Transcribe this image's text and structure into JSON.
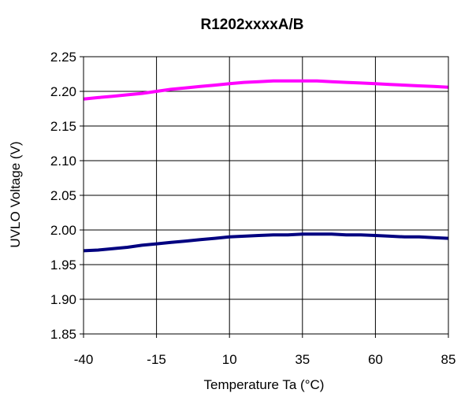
{
  "chart_data": {
    "type": "line",
    "title": "R1202xxxxA/B",
    "xlabel": "Temperature Ta (°C)",
    "ylabel": "UVLO Voltage (V)",
    "xlim": [
      -40,
      85
    ],
    "ylim": [
      1.85,
      2.25
    ],
    "xticks": [
      -40,
      -15,
      10,
      35,
      60,
      85
    ],
    "yticks": [
      1.85,
      1.9,
      1.95,
      2.0,
      2.05,
      2.1,
      2.15,
      2.2,
      2.25
    ],
    "ytick_labels": [
      "1.85",
      "1.90",
      "1.95",
      "2.00",
      "2.05",
      "2.10",
      "2.15",
      "2.20",
      "2.25"
    ],
    "grid": true,
    "series": [
      {
        "color": "#ff00ff",
        "x": [
          -40,
          -35,
          -30,
          -25,
          -20,
          -15,
          -10,
          -5,
          0,
          5,
          10,
          15,
          20,
          25,
          30,
          35,
          40,
          45,
          50,
          55,
          60,
          65,
          70,
          75,
          80,
          85
        ],
        "y": [
          2.189,
          2.191,
          2.193,
          2.195,
          2.197,
          2.2,
          2.203,
          2.205,
          2.207,
          2.209,
          2.211,
          2.213,
          2.214,
          2.215,
          2.215,
          2.215,
          2.215,
          2.214,
          2.213,
          2.212,
          2.211,
          2.21,
          2.209,
          2.208,
          2.207,
          2.206
        ]
      },
      {
        "color": "#000080",
        "x": [
          -40,
          -35,
          -30,
          -25,
          -20,
          -15,
          -10,
          -5,
          0,
          5,
          10,
          15,
          20,
          25,
          30,
          35,
          40,
          45,
          50,
          55,
          60,
          65,
          70,
          75,
          80,
          85
        ],
        "y": [
          1.97,
          1.971,
          1.973,
          1.975,
          1.978,
          1.98,
          1.982,
          1.984,
          1.986,
          1.988,
          1.99,
          1.991,
          1.992,
          1.993,
          1.993,
          1.994,
          1.994,
          1.994,
          1.993,
          1.993,
          1.992,
          1.991,
          1.99,
          1.99,
          1.989,
          1.988
        ]
      }
    ]
  }
}
